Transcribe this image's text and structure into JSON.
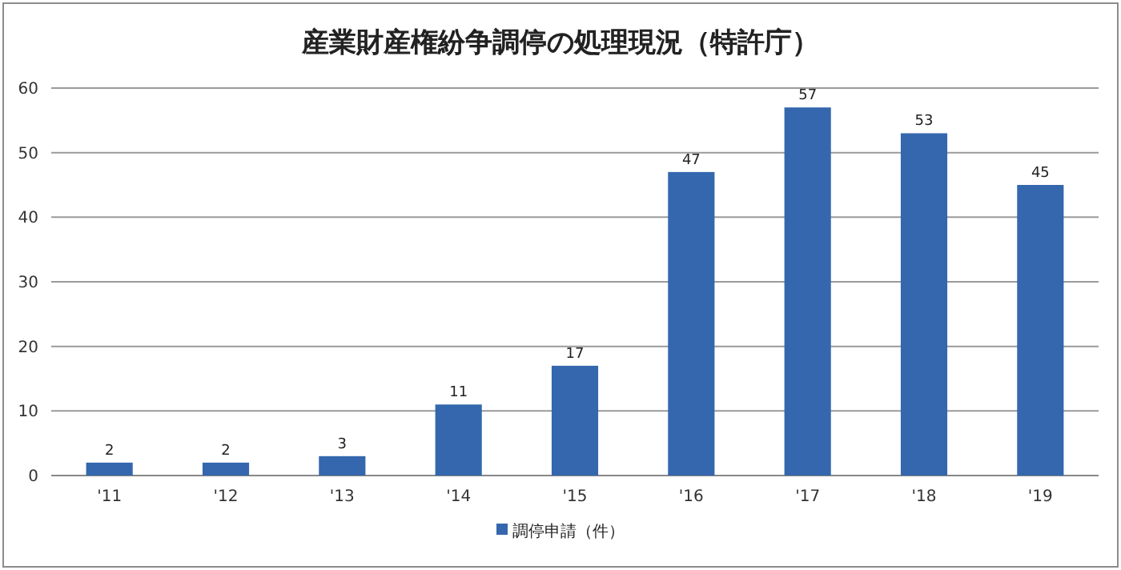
{
  "chart_data": {
    "type": "bar",
    "title": "産業財産権紛争調停の処理現況（特許庁）",
    "categories": [
      "'11",
      "'12",
      "'13",
      "'14",
      "'15",
      "'16",
      "'17",
      "'18",
      "'19"
    ],
    "series": [
      {
        "name": "調停申請（件）",
        "color": "#3467ad",
        "values": [
          2,
          2,
          3,
          11,
          17,
          47,
          57,
          53,
          45
        ]
      }
    ],
    "ylim": [
      0,
      60
    ],
    "yticks": [
      0,
      10,
      20,
      30,
      40,
      50,
      60
    ],
    "grid": "y",
    "legend": "bottom",
    "data_labels": true
  }
}
